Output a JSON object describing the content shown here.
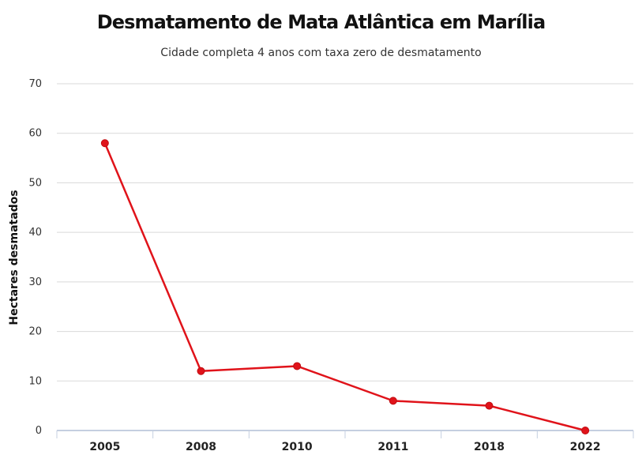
{
  "chart_data": {
    "type": "line",
    "title": "Desmatamento de Mata Atlântica em Marília",
    "subtitle": "Cidade completa 4 anos com taxa zero de desmatamento",
    "xlabel": "",
    "ylabel": "Hectares desmatados",
    "categories": [
      "2005",
      "2008",
      "2010",
      "2011",
      "2018",
      "2022"
    ],
    "series": [
      {
        "values": [
          58,
          12,
          13,
          6,
          5,
          0
        ]
      }
    ],
    "ylim": [
      0,
      70
    ],
    "yticks": [
      0,
      10,
      20,
      30,
      40,
      50,
      60,
      70
    ],
    "grid": true,
    "legend": "none",
    "colors": {
      "line": "#e0131a",
      "marker": "#e0131a",
      "grid": "#d9d9d9",
      "axis": "#c5cfe0"
    }
  }
}
